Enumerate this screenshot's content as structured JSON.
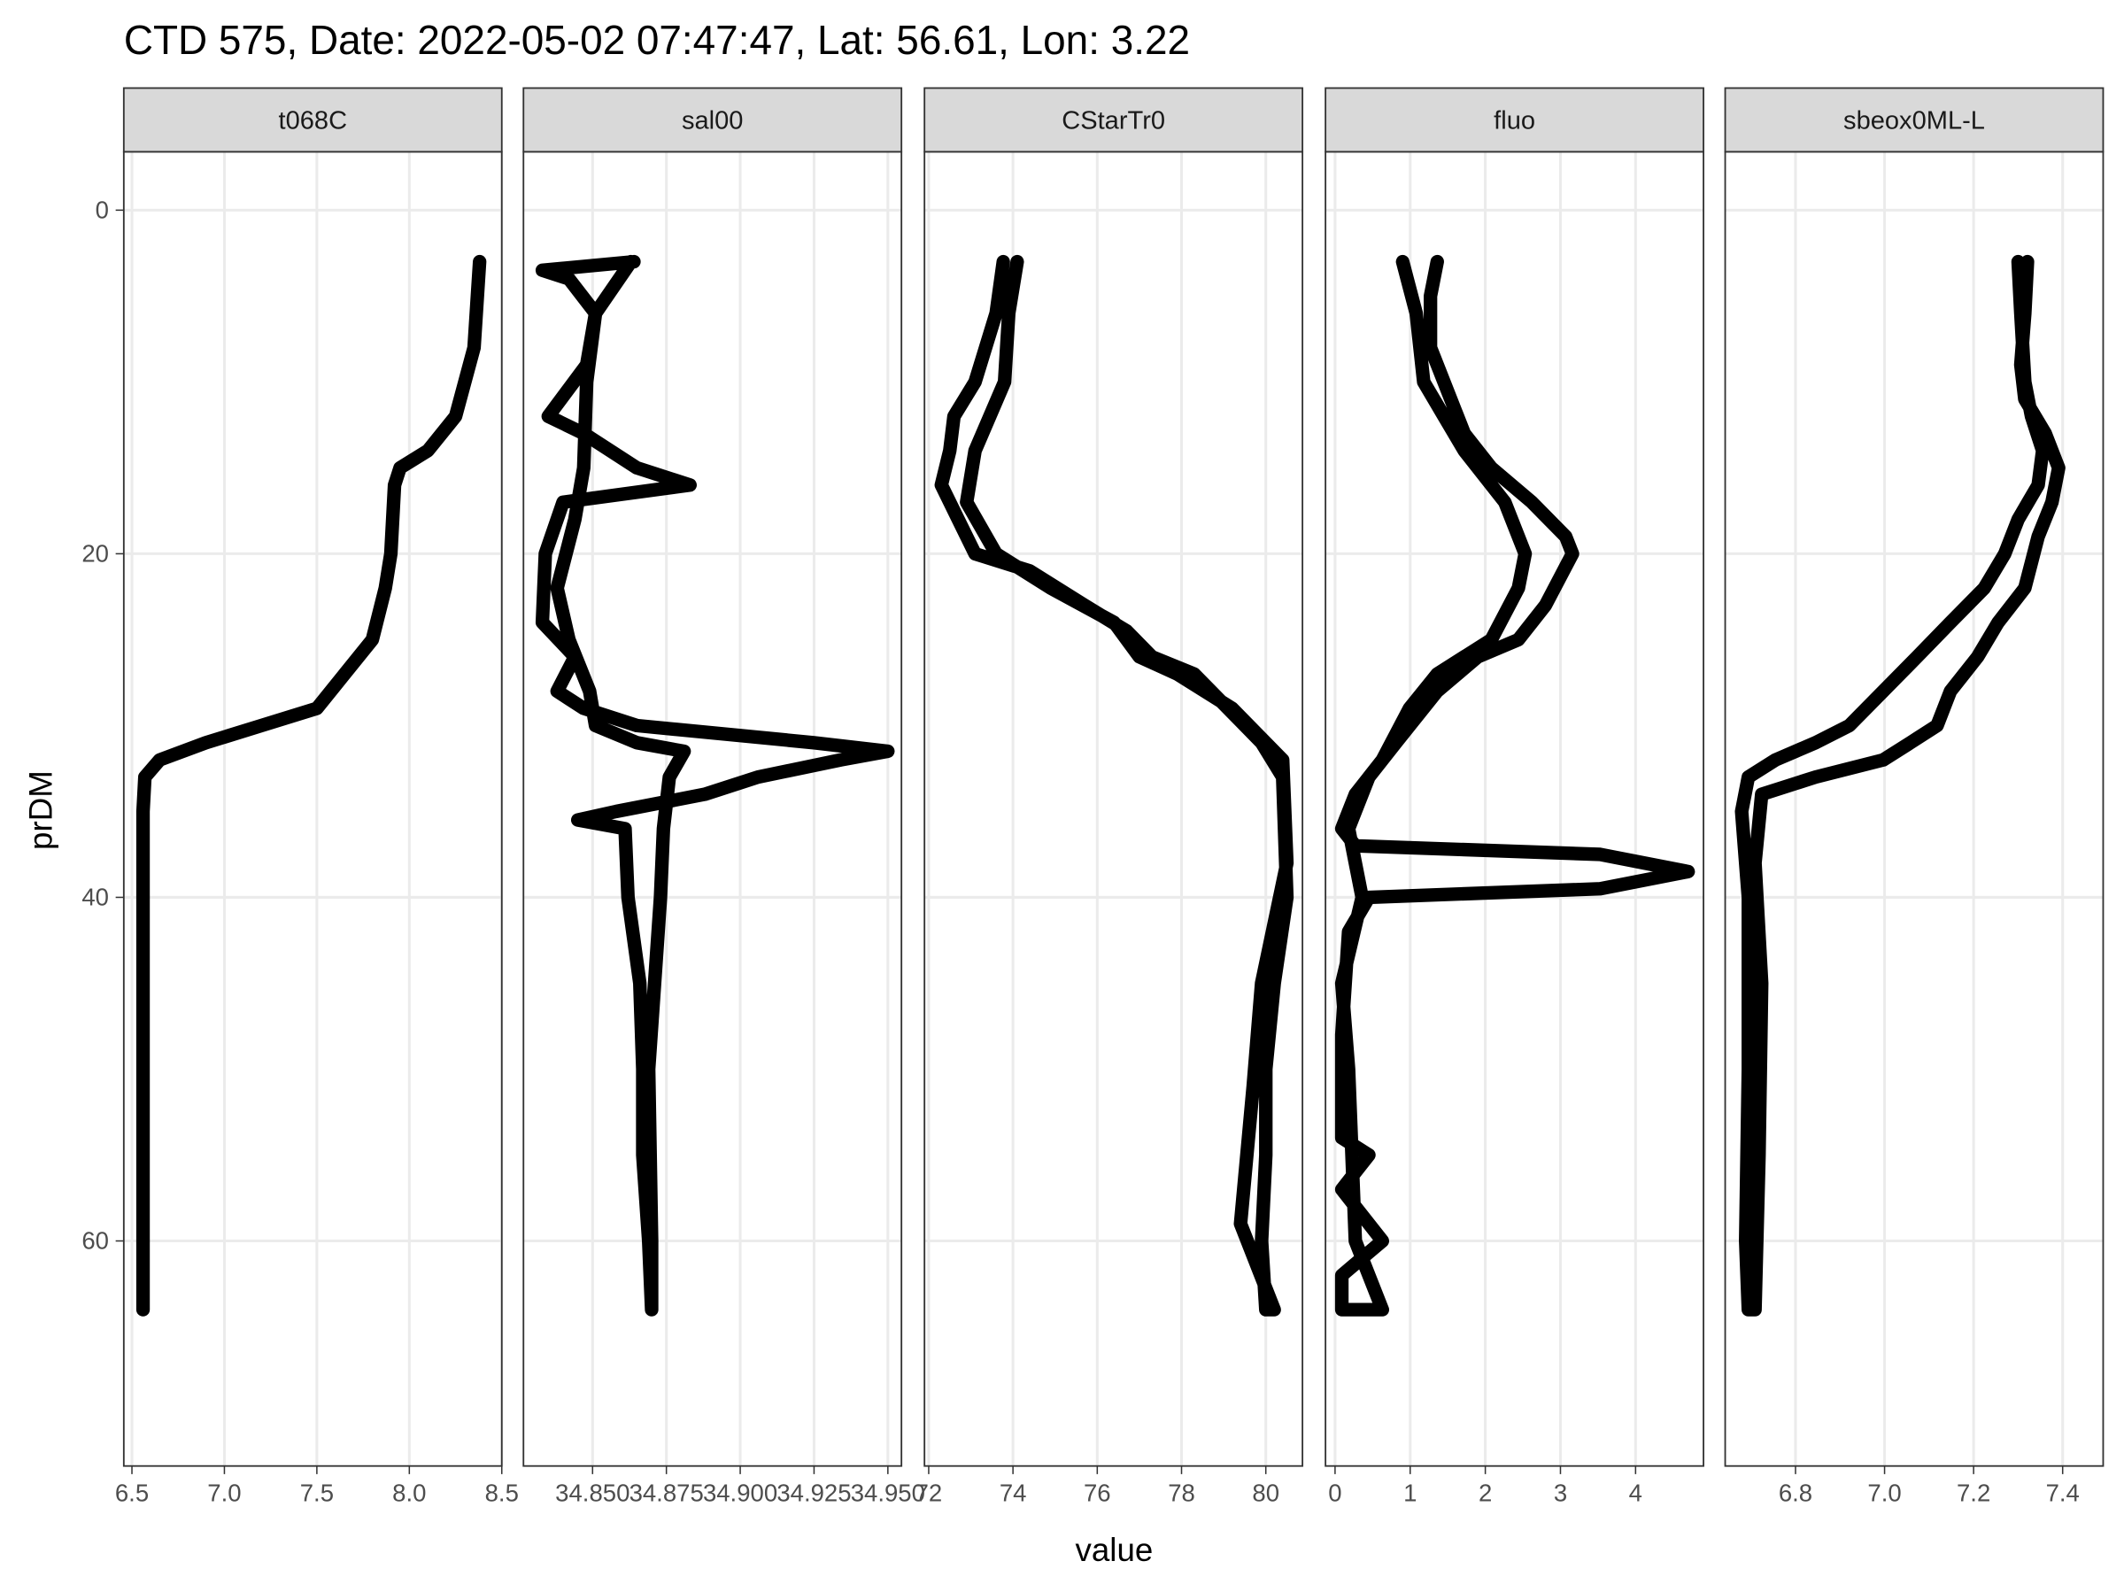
{
  "chart_data": {
    "type": "line",
    "title": "CTD 575, Date: 2022-05-02 07:47:47, Lat: 56.61, Lon: 3.22",
    "x_label": "value",
    "y_label": "prDM",
    "ylim": [
      -3.4,
      73.1
    ],
    "y_reversed": true,
    "yticks": [
      0,
      20,
      40,
      60
    ],
    "grid": true,
    "color": "#000000",
    "facets": [
      {
        "panel": "t068C",
        "xlim": [
          6.456,
          8.5
        ],
        "xticks": [
          6.5,
          {
            "value": 7,
            "label": "7.0"
          },
          7.5,
          {
            "value": 8,
            "label": "8.0"
          },
          8.5
        ],
        "y": [
          3,
          8,
          12,
          14,
          15,
          16,
          20,
          22,
          25,
          27,
          29,
          30,
          31,
          32,
          33,
          35,
          45,
          55,
          64
        ],
        "x": [
          8.38,
          8.35,
          8.25,
          8.1,
          7.95,
          7.92,
          7.9,
          7.87,
          7.8,
          7.65,
          7.5,
          7.2,
          6.9,
          6.65,
          6.57,
          6.56,
          6.56,
          6.56,
          6.56
        ]
      },
      {
        "panel": "sal00",
        "xlim": [
          34.8266,
          34.9546
        ],
        "xticks": [
          {
            "value": 34.85,
            "label": "34.850"
          },
          34.875,
          {
            "value": 34.9,
            "label": "34.900"
          },
          34.925,
          {
            "value": 34.95,
            "label": "34.950"
          }
        ],
        "y": [
          3,
          3.5,
          4,
          6,
          9,
          12,
          13,
          15,
          16,
          17,
          20,
          24,
          26,
          28,
          29,
          30,
          31,
          31.5,
          32,
          33,
          34,
          35,
          35.5,
          36,
          40,
          45,
          50,
          55,
          60,
          64,
          60,
          50,
          40,
          36,
          33,
          31.5,
          31,
          30,
          28,
          25,
          22,
          18,
          15,
          10,
          6,
          3
        ],
        "x": [
          34.864,
          34.833,
          34.842,
          34.851,
          34.848,
          34.835,
          34.847,
          34.865,
          34.883,
          34.84,
          34.834,
          34.833,
          34.844,
          34.838,
          34.847,
          34.865,
          34.925,
          34.95,
          34.934,
          34.906,
          34.888,
          34.858,
          34.845,
          34.861,
          34.862,
          34.866,
          34.867,
          34.867,
          34.869,
          34.87,
          34.87,
          34.869,
          34.873,
          34.874,
          34.876,
          34.881,
          34.865,
          34.851,
          34.849,
          34.842,
          34.838,
          34.844,
          34.847,
          34.848,
          34.851,
          34.863
        ]
      },
      {
        "panel": "CStarTr0",
        "xlim": [
          71.9,
          80.87
        ],
        "xticks": [
          72,
          74,
          76,
          78,
          80
        ],
        "y": [
          3,
          6,
          10,
          12,
          14,
          16,
          18,
          20,
          21,
          23,
          24.5,
          26,
          27,
          29,
          31,
          33,
          40,
          45,
          50,
          55,
          60,
          64,
          64,
          59,
          51,
          45,
          38,
          32,
          29,
          27,
          26,
          24,
          22,
          20,
          17,
          14,
          10,
          6,
          3
        ],
        "x": [
          73.77,
          73.6,
          73.1,
          72.6,
          72.5,
          72.3,
          72.7,
          73.1,
          74.4,
          75.7,
          76.7,
          77.3,
          78.3,
          79.1,
          79.9,
          80.4,
          80.5,
          80.2,
          80.0,
          80.0,
          79.9,
          80.0,
          80.2,
          79.4,
          79.7,
          79.9,
          80.5,
          80.4,
          79.2,
          77.9,
          77.0,
          76.4,
          74.9,
          73.6,
          72.9,
          73.1,
          73.8,
          73.9,
          74.1
        ]
      },
      {
        "panel": "fluo",
        "xlim": [
          -0.127,
          4.904
        ],
        "xticks": [
          0,
          1,
          2,
          3,
          4
        ],
        "y": [
          3,
          6,
          10,
          12,
          14,
          17,
          20,
          22,
          25,
          27,
          29,
          32,
          34,
          36,
          37,
          37.5,
          38.5,
          39.5,
          40,
          42,
          48,
          54,
          55,
          57,
          60,
          62,
          64,
          64,
          60,
          50,
          45,
          40,
          36,
          33,
          31,
          28,
          26,
          25,
          23,
          20,
          19,
          17,
          15,
          13,
          11,
          8,
          5,
          3
        ],
        "x": [
          0.9,
          1.08,
          1.18,
          1.45,
          1.72,
          2.26,
          2.53,
          2.44,
          2.08,
          1.36,
          0.99,
          0.63,
          0.27,
          0.09,
          0.27,
          3.53,
          4.7,
          3.53,
          0.45,
          0.18,
          0.09,
          0.09,
          0.45,
          0.09,
          0.63,
          0.09,
          0.09,
          0.63,
          0.27,
          0.18,
          0.09,
          0.36,
          0.18,
          0.45,
          0.81,
          1.36,
          1.9,
          2.44,
          2.8,
          3.16,
          3.07,
          2.62,
          2.08,
          1.72,
          1.54,
          1.27,
          1.27,
          1.36
        ]
      },
      {
        "panel": "sbeox0ML-L",
        "xlim": [
          6.642,
          7.491
        ],
        "xticks": [
          6.8,
          {
            "value": 7,
            "label": "7.0"
          },
          7.2,
          7.4
        ],
        "y": [
          3,
          6,
          10,
          12,
          14,
          16,
          18,
          20,
          22,
          24,
          26,
          28,
          30,
          31,
          32,
          33,
          35,
          40,
          50,
          60,
          64,
          64,
          55,
          45,
          38,
          34,
          33,
          32,
          31,
          30,
          28,
          26,
          24,
          22,
          19,
          17,
          15,
          13,
          11,
          9,
          6,
          3
        ],
        "x": [
          7.3,
          7.306,
          7.315,
          7.33,
          7.355,
          7.345,
          7.3,
          7.27,
          7.224,
          7.148,
          7.073,
          6.997,
          6.921,
          6.845,
          6.755,
          6.694,
          6.679,
          6.694,
          6.694,
          6.688,
          6.694,
          6.709,
          6.718,
          6.724,
          6.709,
          6.724,
          6.845,
          6.997,
          7.058,
          7.118,
          7.148,
          7.209,
          7.255,
          7.315,
          7.345,
          7.376,
          7.391,
          7.361,
          7.315,
          7.306,
          7.315,
          7.321
        ]
      }
    ]
  }
}
